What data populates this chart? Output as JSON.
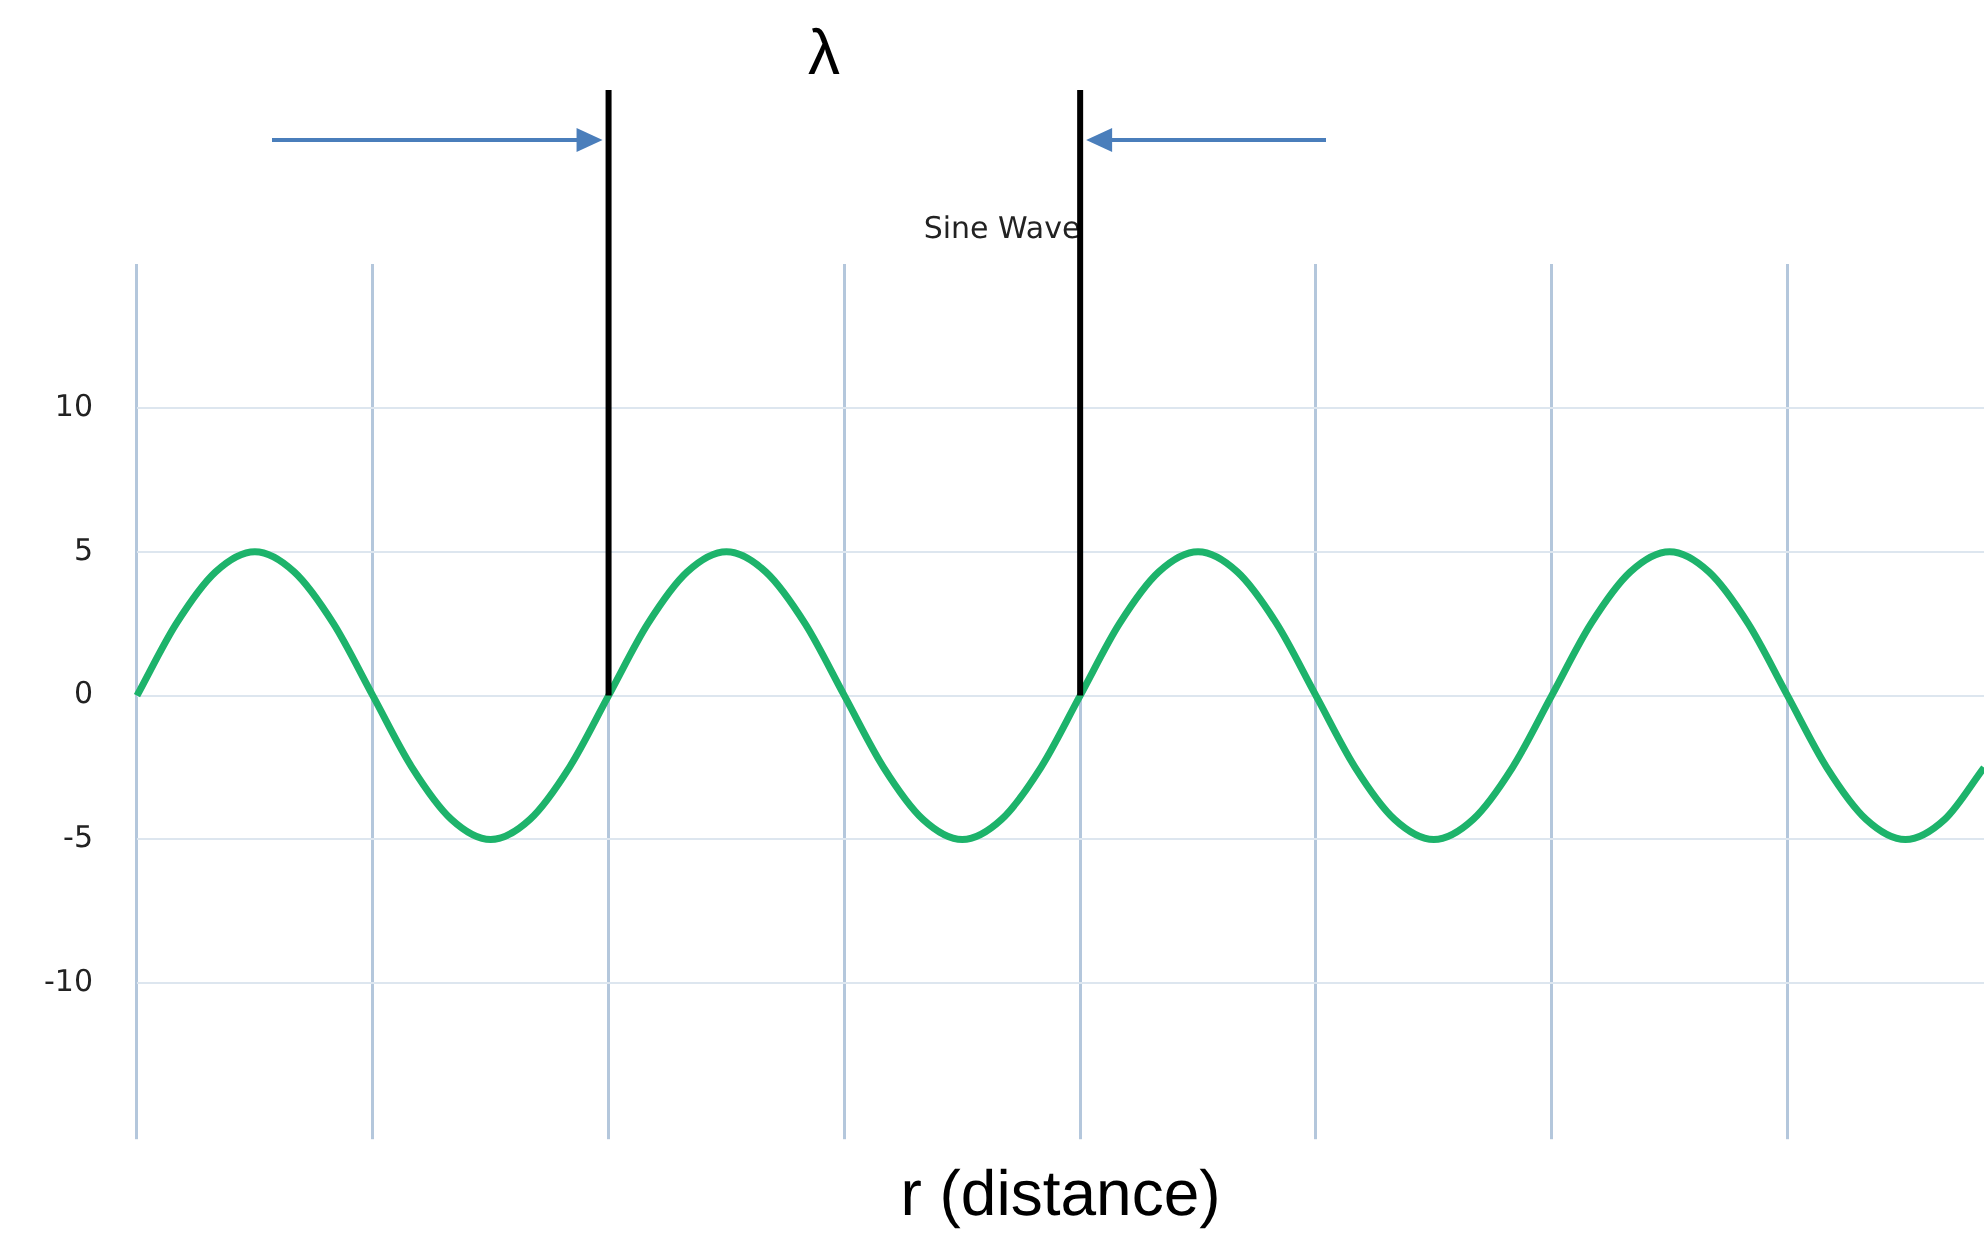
{
  "chart_data": {
    "type": "line",
    "title": "Sine Wave",
    "xlabel": "r (distance)",
    "annotations": [
      "λ"
    ],
    "categories": [
      null,
      null,
      null,
      null,
      null,
      null,
      null,
      null,
      null,
      null,
      null,
      null,
      null,
      null,
      null,
      null,
      null,
      null,
      null,
      null,
      null,
      null,
      null,
      null,
      null,
      null,
      null,
      null,
      null,
      null,
      null,
      null,
      null,
      null,
      null,
      null,
      null,
      null,
      null,
      null,
      null,
      null,
      null,
      null,
      null,
      null,
      null,
      null
    ],
    "series": [
      {
        "color": "#1db36b",
        "values": [
          0,
          2.5,
          4.3,
          5,
          4.3,
          2.5,
          0,
          -2.5,
          -4.3,
          -5,
          -4.3,
          -2.5,
          0,
          2.5,
          4.3,
          5,
          4.3,
          2.5,
          0,
          -2.5,
          -4.3,
          -5,
          -4.3,
          -2.5,
          0,
          2.5,
          4.3,
          5,
          4.3,
          2.5,
          0,
          -2.5,
          -4.3,
          -5,
          -4.3,
          -2.5,
          0,
          2.5,
          4.3,
          5,
          4.3,
          2.5,
          0,
          -2.5,
          -4.3,
          -5,
          -4.3,
          -2.5
        ]
      }
    ],
    "ylim": [
      -15,
      15
    ],
    "yticks": [
      -10,
      -5,
      0,
      5,
      10
    ],
    "grid": true,
    "legend": false,
    "marker": "none",
    "line_style": "solid",
    "tick_labels": "y"
  }
}
